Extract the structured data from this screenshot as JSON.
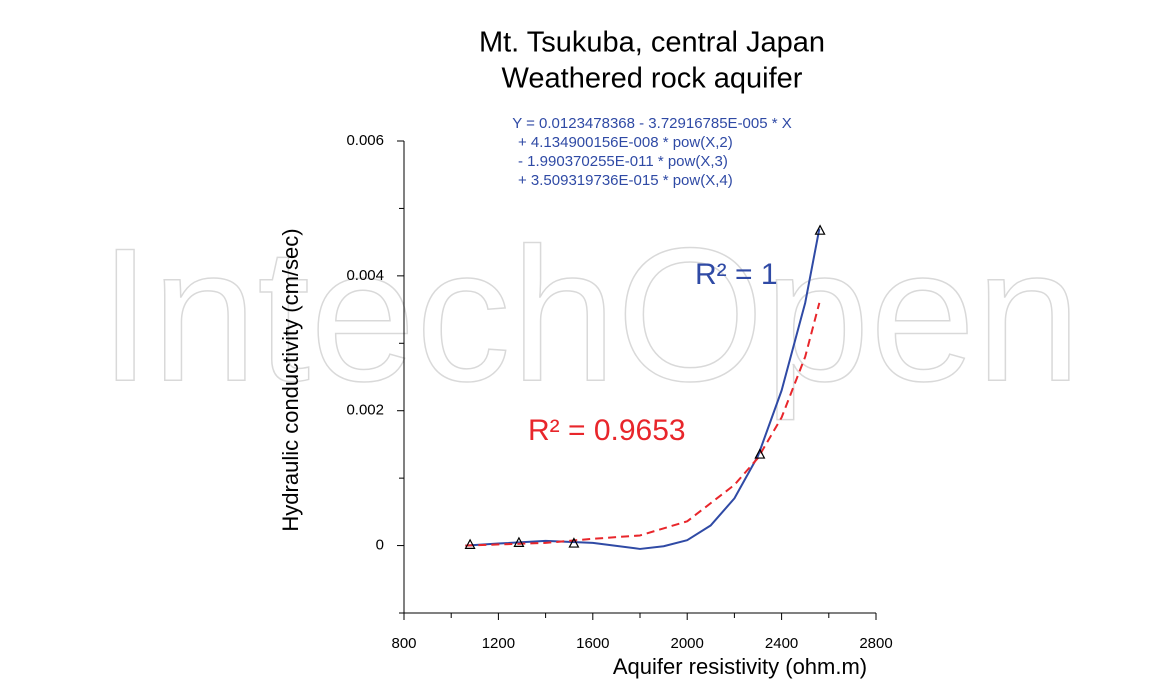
{
  "chart_data": {
    "type": "line",
    "title": [
      "Mt. Tsukuba, central Japan",
      "Weathered rock aquifer"
    ],
    "equation": [
      "Y = 0.0123478368 - 3.72916785E-005 * X",
      "+ 4.134900156E-008 * pow(X,2)",
      "- 1.990370255E-011 * pow(X,3)",
      "+ 3.509319736E-015 * pow(X,4)"
    ],
    "annotations": [
      {
        "text": "R² = 1",
        "color": "#2f4aa5"
      },
      {
        "text": "R² = 0.9653",
        "color": "#e8262b"
      }
    ],
    "watermark": "IntechOpen",
    "x_label": "Aquifer resistivity (ohm.m)",
    "y_label": "Hydraulic conductivity (cm/sec)",
    "xlim": [
      800,
      2800
    ],
    "ylim": [
      -0.001,
      0.006
    ],
    "xticks": [
      800,
      1200,
      1600,
      2000,
      2400,
      2800
    ],
    "yticks": [
      0,
      0.002,
      0.004,
      0.006
    ],
    "x_minor_ticks": [
      1000,
      1400,
      1800,
      2200,
      2600
    ],
    "y_minor_ticks": [
      -0.001,
      0.001,
      0.003,
      0.005
    ],
    "series": [
      {
        "color": "#2f4aa5",
        "dash": "solid",
        "x": [
          1060,
          1200,
          1400,
          1600,
          1800,
          1900,
          2000,
          2100,
          2200,
          2300,
          2400,
          2500,
          2560
        ],
        "values": [
          0,
          3e-05,
          7e-05,
          4e-05,
          -5e-05,
          -1e-05,
          8e-05,
          0.0003,
          0.0007,
          0.00133,
          0.0023,
          0.0036,
          0.0047
        ]
      },
      {
        "color": "#e8262b",
        "dash": "dashed",
        "x": [
          1060,
          1400,
          1600,
          1800,
          2000,
          2200,
          2300,
          2400,
          2500,
          2560
        ],
        "values": [
          0,
          4e-05,
          0.0001,
          0.00015,
          0.00036,
          0.0009,
          0.0013,
          0.0019,
          0.0028,
          0.0036
        ]
      },
      {
        "color": "#000000",
        "marker": "triangle",
        "x": [
          1080,
          1287,
          1520,
          2308,
          2563
        ],
        "values": [
          1e-05,
          4e-05,
          3e-05,
          0.00135,
          0.00467
        ]
      }
    ]
  }
}
